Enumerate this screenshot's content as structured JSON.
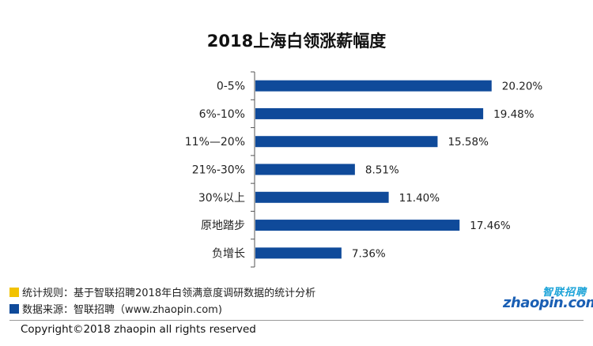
{
  "chart_data": {
    "type": "bar",
    "orientation": "horizontal",
    "title": "2018上海白领涨薪幅度",
    "categories": [
      "0-5%",
      "6%-10%",
      "11%—20%",
      "21%-30%",
      "30%以上",
      "原地踏步",
      "负增长"
    ],
    "values": [
      20.2,
      19.48,
      15.58,
      8.51,
      11.4,
      17.46,
      7.36
    ],
    "value_labels": [
      "20.20%",
      "19.48%",
      "15.58%",
      "8.51%",
      "11.40%",
      "17.46%",
      "7.36%"
    ],
    "xlim": [
      0,
      21.5
    ],
    "grid": false,
    "bar_color": "#0f4a9a"
  },
  "notes": {
    "rules": "统计规则：基于智联招聘2018年白领满意度调研数据的统计分析",
    "source": "数据来源：智联招聘（www.zhaopin.com)",
    "rules_color": "#f2c200",
    "source_color": "#0f4a9a"
  },
  "logo": {
    "cn": "智联招聘",
    "en": "zhaopin.com"
  },
  "footer": {
    "copyright": "Copyright©2018 zhaopin all rights reserved"
  }
}
